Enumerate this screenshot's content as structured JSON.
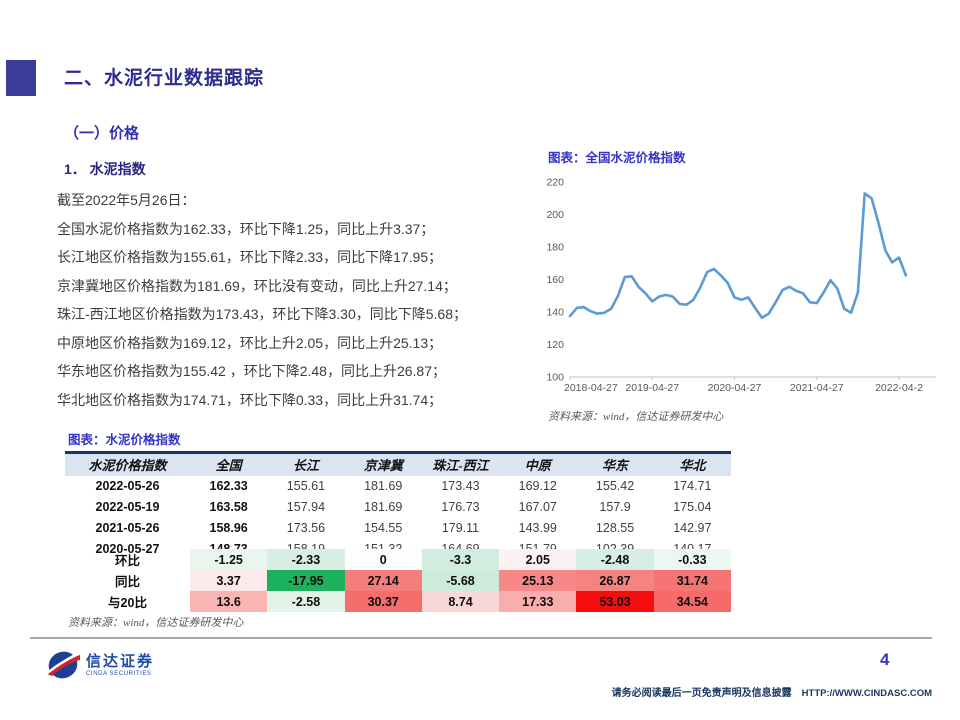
{
  "page": {
    "section_title": "二、水泥行业数据跟踪",
    "subsection_title": "（一）价格",
    "subsub_title": "1． 水泥指数",
    "paragraph_lines": [
      "截至2022年5月26日：",
      "全国水泥价格指数为162.33，环比下降1.25，同比上升3.37；",
      "长江地区价格指数为155.61，环比下降2.33，同比下降17.95；",
      "京津冀地区价格指数为181.69，环比没有变动，同比上升27.14；",
      "珠江-西江地区价格指数为173.43，环比下降3.30，同比下降5.68；",
      "中原地区价格指数为169.12，环比上升2.05，同比上升25.13；",
      "华东地区价格指数为155.42 ，环比下降2.48，同比上升26.87；",
      "华北地区价格指数为174.71，环比下降0.33，同比上升31.74；"
    ]
  },
  "chart": {
    "caption": "图表：全国水泥价格指数",
    "source": "资料来源：wind，信达证券研发中心"
  },
  "chart_data": {
    "type": "line",
    "title": "全国水泥价格指数",
    "line_color": "#5B9BD5",
    "ylim": [
      100,
      220
    ],
    "y_ticks": [
      220,
      200,
      180,
      160,
      140,
      120,
      100
    ],
    "x_tick_labels": [
      "2018-04-27",
      "2019-04-27",
      "2020-04-27",
      "2021-04-27",
      "2022-04-2"
    ],
    "x_tick_indices": [
      0,
      12,
      24,
      36,
      48
    ],
    "grid": false,
    "legend": "none",
    "series": [
      {
        "name": "全国水泥价格指数",
        "values": [
          137.5,
          142.5,
          143,
          140.5,
          139,
          139.5,
          142,
          150,
          161.5,
          162,
          155.5,
          151.5,
          146.5,
          149.5,
          150.5,
          149.5,
          145,
          144.5,
          147.5,
          155,
          164.5,
          166.5,
          162.5,
          158,
          149,
          147.5,
          149,
          142.5,
          136.5,
          139,
          146,
          153.5,
          155.5,
          153,
          151.5,
          146,
          145.5,
          152,
          159.5,
          154.5,
          142,
          139.5,
          152,
          213,
          210,
          195,
          178,
          170.5,
          173.5,
          162.5
        ]
      }
    ]
  },
  "table": {
    "caption": "图表：水泥价格指数",
    "source": "资料来源：wind，信达证券研发中心",
    "headers": [
      "水泥价格指数",
      "全国",
      "长江",
      "京津冀",
      "珠江-西江",
      "中原",
      "华东",
      "华北"
    ],
    "rows": [
      {
        "label": "2022-05-26",
        "values": [
          "162.33",
          "155.61",
          "181.69",
          "173.43",
          "169.12",
          "155.42",
          "174.71"
        ]
      },
      {
        "label": "2022-05-19",
        "values": [
          "163.58",
          "157.94",
          "181.69",
          "176.73",
          "167.07",
          "157.9",
          "175.04"
        ]
      },
      {
        "label": "2021-05-26",
        "values": [
          "158.96",
          "173.56",
          "154.55",
          "179.11",
          "143.99",
          "128.55",
          "142.97"
        ]
      },
      {
        "label": "2020-05-27",
        "values": [
          "148.73",
          "158.19",
          "151.32",
          "164.69",
          "151.79",
          "102.39",
          "140.17"
        ]
      }
    ],
    "delta_rows": [
      {
        "label": "环比",
        "values": [
          "-1.25",
          "-2.33",
          "0",
          "-3.3",
          "2.05",
          "-2.48",
          "-0.33"
        ],
        "colors": [
          "#e9f5ef",
          "#d7efe2",
          "#fcfefd",
          "#d2ecdf",
          "#fdf2f2",
          "#d7efe2",
          "#edf7f2"
        ]
      },
      {
        "label": "同比",
        "values": [
          "3.37",
          "-17.95",
          "27.14",
          "-5.68",
          "25.13",
          "26.87",
          "31.74"
        ],
        "colors": [
          "#fceaea",
          "#1db05e",
          "#f67d7d",
          "#cdebdb",
          "#f78888",
          "#f78282",
          "#f67474"
        ]
      },
      {
        "label": "与20比",
        "values": [
          "13.6",
          "-2.58",
          "30.37",
          "8.74",
          "17.33",
          "53.03",
          "34.54"
        ],
        "colors": [
          "#f9b4b4",
          "#e3f3ea",
          "#f66d6d",
          "#fbd8d8",
          "#f9adad",
          "#f50d0d",
          "#f66a6a"
        ]
      }
    ]
  },
  "footer": {
    "page_number": "4",
    "disclaimer": "请务必阅读最后一页免责声明及信息披露",
    "website": "HTTP://WWW.CINDASC.COM",
    "logo_text": "信达证券",
    "logo_subtext": "CINDA SECURITIES"
  },
  "colors": {
    "accent_indigo": "#3b3b9a",
    "caption_blue": "#3434c8",
    "header_bg": "#dbe5f1",
    "header_border": "#17375e",
    "line_blue": "#5B9BD5"
  }
}
